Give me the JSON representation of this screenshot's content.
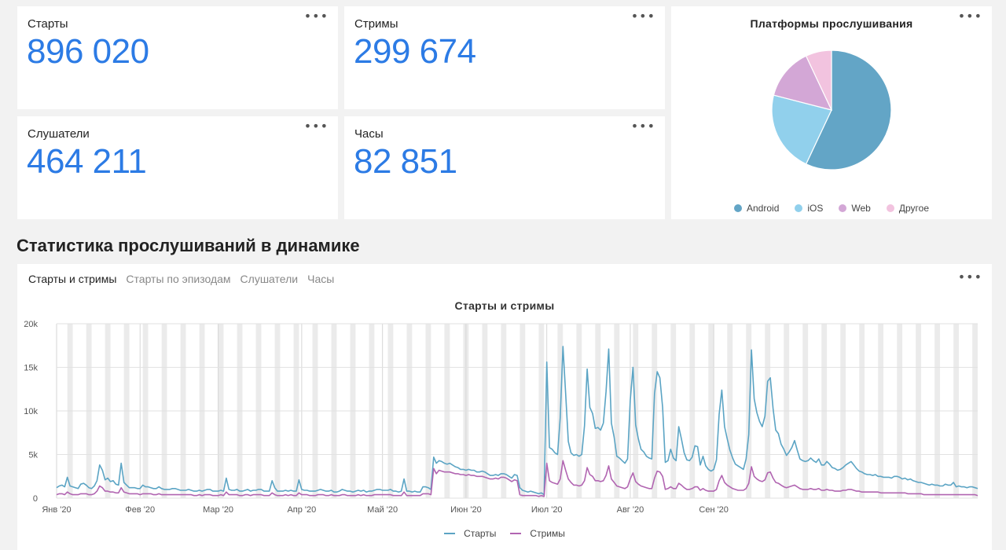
{
  "metrics": [
    {
      "label": "Старты",
      "value": "896 020"
    },
    {
      "label": "Стримы",
      "value": "299 674"
    },
    {
      "label": "Слушатели",
      "value": "464 211"
    },
    {
      "label": "Часы",
      "value": "82 851"
    }
  ],
  "menu_icon": "more-dots-icon",
  "pie": {
    "title": "Платформы прослушивания",
    "legend": [
      "Android",
      "iOS",
      "Web",
      "Другое"
    ]
  },
  "section_title": "Статистика прослушиваний в динамике",
  "tabs": [
    "Старты и стримы",
    "Старты по эпизодам",
    "Слушатели",
    "Часы"
  ],
  "chart": {
    "title": "Старты и стримы",
    "legend": [
      "Старты",
      "Стримы"
    ]
  },
  "chart_data": [
    {
      "type": "pie",
      "title": "Платформы прослушивания",
      "labels": [
        "Android",
        "iOS",
        "Web",
        "Другое"
      ],
      "values": [
        57,
        22,
        14,
        7
      ],
      "colors": [
        "#63a5c6",
        "#91d0ec",
        "#d3a7d6",
        "#f2c3df"
      ],
      "legend_position": "bottom"
    },
    {
      "type": "line",
      "title": "Старты и стримы",
      "ylim": [
        0,
        20000
      ],
      "y_ticks": [
        "0",
        "5k",
        "10k",
        "15k",
        "20k"
      ],
      "x_ticks": [
        "Янв '20",
        "Фев '20",
        "Мар '20",
        "Апр '20",
        "Май '20",
        "Июн '20",
        "Июл '20",
        "Авг '20",
        "Сен '20"
      ],
      "grid": true,
      "legend_position": "bottom",
      "series": [
        {
          "name": "Старты",
          "color": "#5ba4c4",
          "values": [
            1200,
            1400,
            1500,
            1300,
            2400,
            1400,
            1300,
            1200,
            1100,
            1600,
            1700,
            1500,
            1200,
            1100,
            1400,
            2000,
            3800,
            3200,
            2100,
            2300,
            1900,
            2000,
            1600,
            1500,
            4000,
            1800,
            1500,
            1200,
            1200,
            1200,
            1100,
            1100,
            1500,
            1300,
            1300,
            1200,
            1100,
            1100,
            1300,
            1100,
            1000,
            1000,
            1000,
            1100,
            1100,
            1000,
            900,
            900,
            900,
            1000,
            900,
            800,
            800,
            900,
            800,
            900,
            1000,
            1000,
            800,
            800,
            800,
            900,
            800,
            2300,
            1000,
            900,
            900,
            1000,
            800,
            800,
            900,
            1000,
            800,
            900,
            900,
            1000,
            1000,
            800,
            800,
            800,
            2000,
            1200,
            800,
            800,
            800,
            900,
            800,
            900,
            800,
            800,
            2100,
            1000,
            900,
            900,
            800,
            800,
            800,
            900,
            1000,
            900,
            800,
            800,
            900,
            700,
            700,
            800,
            1000,
            900,
            800,
            800,
            700,
            800,
            900,
            800,
            900,
            700,
            800,
            800,
            900,
            1000,
            1000,
            900,
            900,
            900,
            1000,
            800,
            800,
            700,
            800,
            2200,
            800,
            800,
            700,
            800,
            700,
            700,
            1300,
            1300,
            1200,
            1000,
            4700,
            4000,
            4300,
            4200,
            4000,
            3900,
            4000,
            3800,
            3600,
            3500,
            3300,
            3300,
            3200,
            3300,
            3200,
            3200,
            3000,
            3000,
            3100,
            3000,
            2800,
            2600,
            2600,
            2700,
            2600,
            2800,
            2800,
            2700,
            2500,
            2300,
            2700,
            2600,
            1200,
            900,
            800,
            700,
            800,
            700,
            600,
            500,
            600,
            400,
            15600,
            5800,
            5600,
            5200,
            5000,
            9200,
            17400,
            12000,
            6500,
            5200,
            4900,
            5000,
            4800,
            5000,
            8300,
            14800,
            10400,
            9700,
            8000,
            8100,
            7800,
            8600,
            12200,
            17100,
            8600,
            7000,
            4800,
            4600,
            4300,
            4000,
            4500,
            11200,
            15000,
            8400,
            6800,
            5600,
            5300,
            4800,
            4600,
            4500,
            12000,
            14500,
            13800,
            10400,
            4100,
            4300,
            5600,
            4600,
            4300,
            8200,
            6800,
            5200,
            4400,
            4300,
            4700,
            6000,
            5900,
            3800,
            4800,
            3700,
            3300,
            3100,
            3300,
            4400,
            9600,
            12400,
            8200,
            6800,
            5500,
            4600,
            3900,
            3700,
            3500,
            3300,
            4500,
            7300,
            17000,
            11400,
            9800,
            8800,
            8200,
            9400,
            13400,
            13800,
            10300,
            7800,
            7400,
            6200,
            5600,
            4900,
            5300,
            5800,
            6600,
            5500,
            4500,
            4300,
            4200,
            4300,
            4600,
            4300,
            4100,
            4500,
            3800,
            3800,
            4200,
            3900,
            3500,
            3400,
            3200,
            3300,
            3500,
            3800,
            4000,
            4200,
            3800,
            3400,
            3100,
            3000,
            2800,
            2700,
            2700,
            2600,
            2700,
            2500,
            2500,
            2400,
            2400,
            2400,
            2300,
            2500,
            2500,
            2400,
            2200,
            2300,
            2100,
            2200,
            2000,
            1900,
            1800,
            1800,
            1700,
            1600,
            1500,
            1600,
            1500,
            1500,
            1400,
            1400,
            1600,
            1500,
            1500,
            1800,
            1300,
            1400,
            1300,
            1300,
            1200,
            1300,
            1300,
            1200,
            1100
          ]
        },
        {
          "name": "Стримы",
          "color": "#b165b1",
          "values": [
            400,
            500,
            500,
            400,
            700,
            500,
            400,
            400,
            400,
            500,
            500,
            500,
            400,
            400,
            500,
            800,
            1400,
            1200,
            800,
            800,
            700,
            700,
            600,
            600,
            1200,
            700,
            600,
            500,
            500,
            500,
            500,
            400,
            500,
            500,
            500,
            500,
            400,
            400,
            500,
            400,
            400,
            400,
            400,
            400,
            400,
            400,
            400,
            400,
            400,
            400,
            400,
            300,
            300,
            400,
            300,
            400,
            400,
            400,
            300,
            300,
            300,
            400,
            300,
            700,
            400,
            400,
            400,
            400,
            300,
            300,
            400,
            400,
            300,
            400,
            400,
            400,
            400,
            300,
            300,
            300,
            600,
            400,
            300,
            300,
            300,
            400,
            300,
            400,
            300,
            300,
            600,
            400,
            400,
            400,
            300,
            300,
            300,
            400,
            400,
            400,
            300,
            300,
            400,
            300,
            300,
            300,
            400,
            400,
            300,
            300,
            300,
            300,
            400,
            300,
            400,
            300,
            300,
            300,
            400,
            400,
            400,
            400,
            400,
            400,
            400,
            300,
            300,
            300,
            300,
            700,
            300,
            300,
            300,
            300,
            300,
            300,
            500,
            500,
            500,
            400,
            3400,
            2800,
            3200,
            3100,
            3000,
            3000,
            3000,
            2900,
            2800,
            2800,
            2700,
            2700,
            2600,
            2700,
            2600,
            2600,
            2500,
            2500,
            2500,
            2400,
            2300,
            2200,
            2200,
            2300,
            2200,
            2400,
            2400,
            2300,
            2100,
            1900,
            2100,
            2000,
            400,
            300,
            300,
            300,
            300,
            300,
            300,
            200,
            300,
            200,
            4000,
            2000,
            1800,
            1700,
            1600,
            2200,
            4300,
            3200,
            2200,
            1800,
            1500,
            1500,
            1400,
            1500,
            2000,
            3500,
            2700,
            2500,
            2000,
            2000,
            1900,
            2000,
            2600,
            3700,
            2200,
            1800,
            1400,
            1300,
            1200,
            1100,
            1300,
            2200,
            2900,
            1900,
            1600,
            1400,
            1300,
            1200,
            1100,
            1100,
            2300,
            3100,
            3000,
            2500,
            1000,
            1100,
            1300,
            1100,
            1100,
            1700,
            1500,
            1200,
            1000,
            1000,
            1100,
            1300,
            1300,
            900,
            1100,
            900,
            800,
            800,
            800,
            1000,
            2000,
            2600,
            1800,
            1500,
            1300,
            1100,
            1000,
            900,
            900,
            900,
            1100,
            1700,
            3600,
            2500,
            2200,
            2000,
            1900,
            2100,
            2900,
            3000,
            2300,
            1800,
            1700,
            1500,
            1300,
            1200,
            1300,
            1400,
            1500,
            1300,
            1100,
            1000,
            1000,
            1000,
            1100,
            1000,
            1000,
            1100,
            900,
            900,
            1000,
            900,
            900,
            800,
            800,
            800,
            900,
            900,
            1000,
            1000,
            900,
            800,
            800,
            700,
            700,
            700,
            700,
            700,
            700,
            700,
            600,
            600,
            600,
            600,
            600,
            600,
            600,
            600,
            600,
            600,
            500,
            500,
            500,
            500,
            500,
            500,
            400,
            400,
            400,
            400,
            400,
            400,
            400,
            400,
            400,
            400,
            400,
            400,
            400,
            400,
            400,
            400,
            400,
            400,
            400,
            400,
            300
          ]
        }
      ]
    }
  ]
}
